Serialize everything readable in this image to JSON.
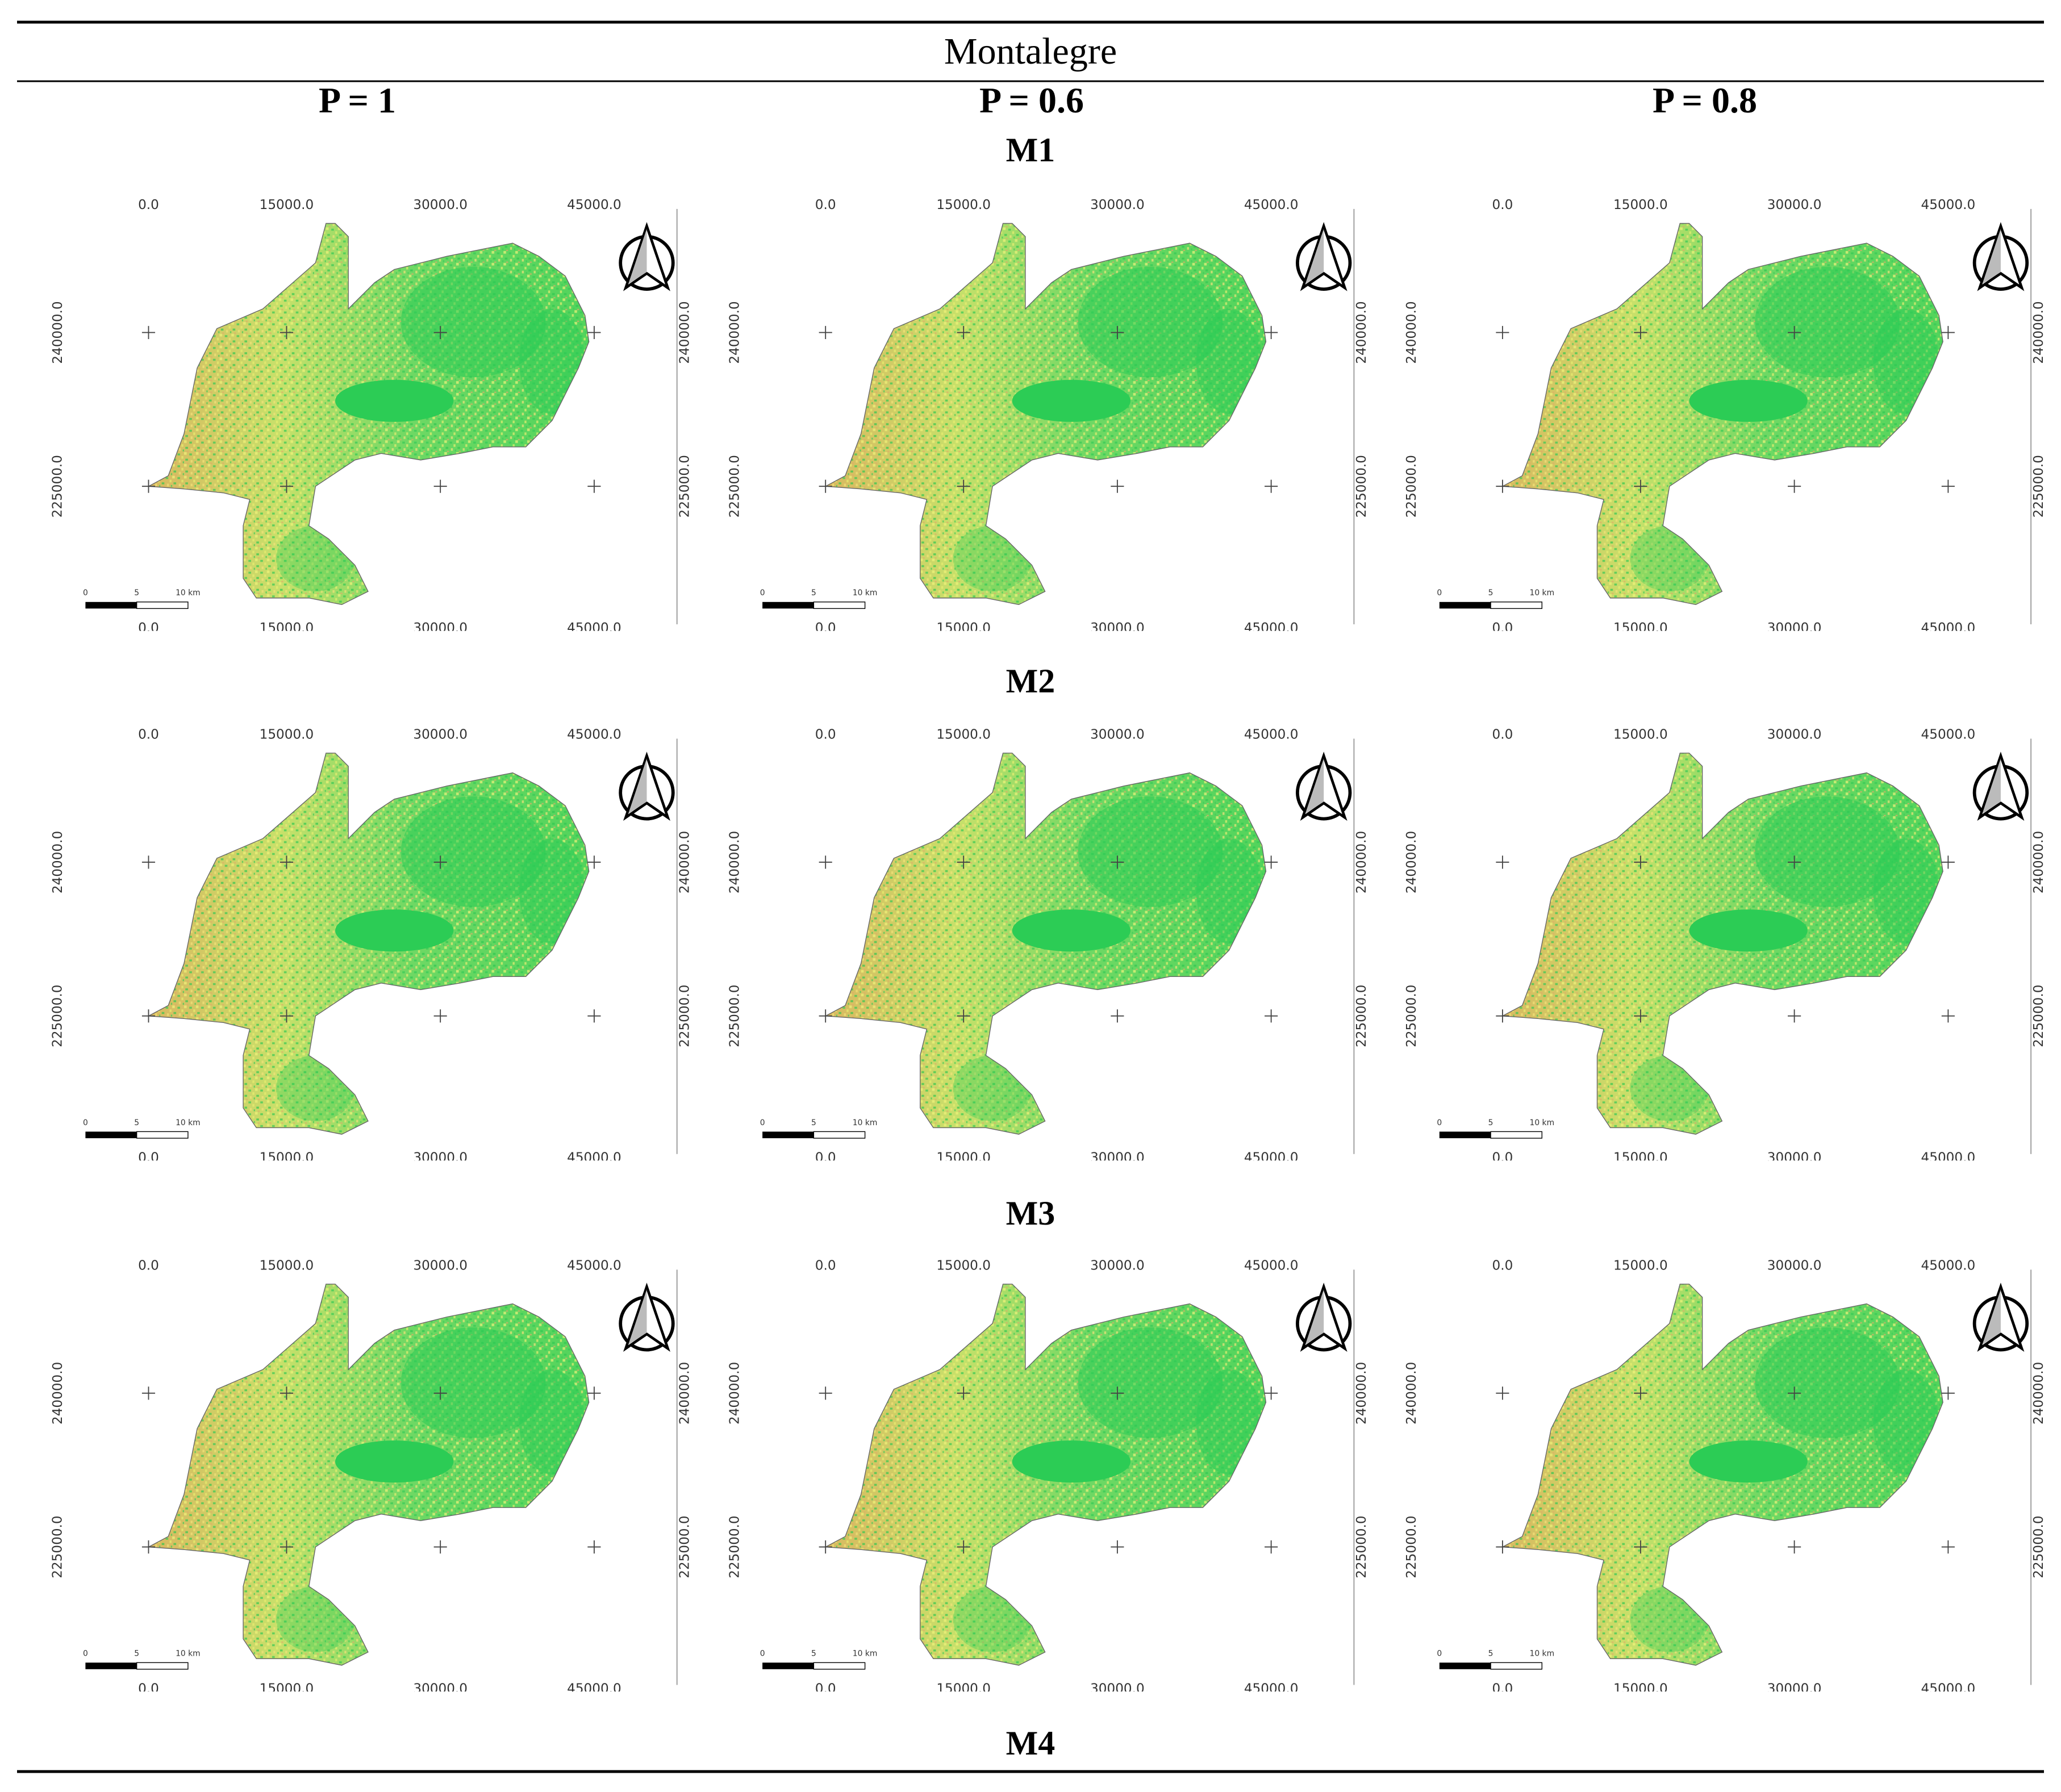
{
  "header": {
    "title": "Montalegre"
  },
  "columns": [
    "P = 1",
    "P = 0.6",
    "P = 0.8"
  ],
  "model_labels": [
    "M1",
    "M2",
    "M3",
    "M4"
  ],
  "map_axis": {
    "x_labels": [
      "0.0",
      "15000.0",
      "30000.0",
      "45000.0"
    ],
    "y_labels": [
      "240000.0",
      "225000.0"
    ],
    "scale_labels": [
      "0",
      "5",
      "10 km"
    ]
  }
}
